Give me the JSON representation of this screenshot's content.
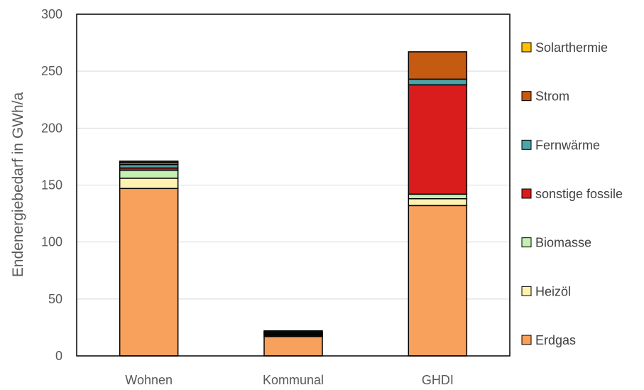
{
  "chart_data": {
    "type": "bar",
    "stacked": true,
    "ylabel": "Endenergiebedarf in GWh/a",
    "xlabel": "",
    "ylim": [
      0,
      300
    ],
    "yticks": [
      0,
      50,
      100,
      150,
      200,
      250,
      300
    ],
    "grid": true,
    "legend_position": "right",
    "categories": [
      "Wohnen",
      "Kommunal",
      "GHDI"
    ],
    "series": [
      {
        "name": "Erdgas",
        "color": "#F8A15C",
        "values": [
          147,
          17,
          132
        ]
      },
      {
        "name": "Heizöl",
        "color": "#FFF2B0",
        "values": [
          9,
          1,
          6
        ]
      },
      {
        "name": "Biomasse",
        "color": "#C6EFB4",
        "values": [
          7,
          1,
          4
        ]
      },
      {
        "name": "sonstige fossile",
        "color": "#D91C1C",
        "values": [
          2,
          1,
          96
        ]
      },
      {
        "name": "Fernwärme",
        "color": "#4FA4A8",
        "values": [
          3,
          1,
          5
        ]
      },
      {
        "name": "Strom",
        "color": "#C55A11",
        "values": [
          2,
          1,
          24
        ]
      },
      {
        "name": "Solarthermie",
        "color": "#FFC000",
        "values": [
          1,
          0,
          0
        ]
      }
    ],
    "legend_order": [
      "Solarthermie",
      "Strom",
      "Fernwärme",
      "sonstige fossile",
      "Biomasse",
      "Heizöl",
      "Erdgas"
    ]
  }
}
